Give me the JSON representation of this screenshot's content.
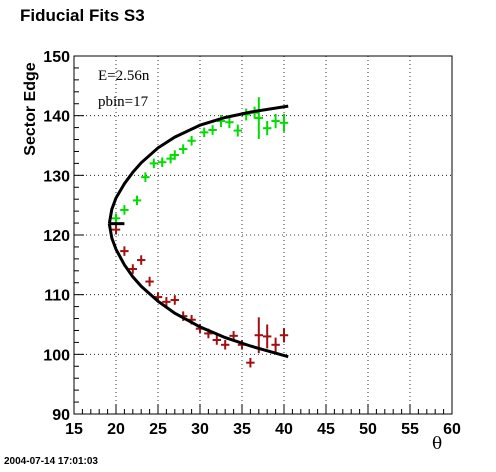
{
  "title": "Fiducial Fits S3",
  "timestamp": "2004-07-14 17:01:03",
  "annotations": [
    "E=2.56n",
    "pbin=17"
  ],
  "colors": {
    "upper": "#00dd00",
    "lower": "#a01010",
    "fit": "#000000",
    "grid": "#000000"
  },
  "chart_data": {
    "type": "scatter",
    "title": "Fiducial Fits S3",
    "xlabel": "θ",
    "ylabel": "Sector Edge",
    "xlim": [
      15,
      60
    ],
    "ylim": [
      90,
      150
    ],
    "xticks": [
      15,
      20,
      25,
      30,
      35,
      40,
      45,
      50,
      55,
      60
    ],
    "yticks": [
      90,
      100,
      110,
      120,
      130,
      140,
      150
    ],
    "grid": true,
    "series": [
      {
        "name": "",
        "kind": "errorbar",
        "color": "#00dd00",
        "points": [
          {
            "x": 20.0,
            "y": 122.8,
            "ey": 0.8
          },
          {
            "x": 21.0,
            "y": 124.2,
            "ey": 0.8
          },
          {
            "x": 22.5,
            "y": 125.8,
            "ey": 0.8
          },
          {
            "x": 23.5,
            "y": 129.7,
            "ey": 0.8
          },
          {
            "x": 24.5,
            "y": 132.0,
            "ey": 0.8
          },
          {
            "x": 25.5,
            "y": 132.2,
            "ey": 0.8
          },
          {
            "x": 26.5,
            "y": 132.8,
            "ey": 0.8
          },
          {
            "x": 27.0,
            "y": 133.4,
            "ey": 0.8
          },
          {
            "x": 28.0,
            "y": 134.4,
            "ey": 0.8
          },
          {
            "x": 29.0,
            "y": 135.8,
            "ey": 0.8
          },
          {
            "x": 30.5,
            "y": 137.2,
            "ey": 0.8
          },
          {
            "x": 31.5,
            "y": 137.6,
            "ey": 0.8
          },
          {
            "x": 32.5,
            "y": 139.1,
            "ey": 1.0
          },
          {
            "x": 33.5,
            "y": 138.9,
            "ey": 1.0
          },
          {
            "x": 34.5,
            "y": 137.5,
            "ey": 1.0
          },
          {
            "x": 35.5,
            "y": 140.2,
            "ey": 1.0
          },
          {
            "x": 36.5,
            "y": 140.5,
            "ey": 1.0
          },
          {
            "x": 37.0,
            "y": 139.6,
            "ey": 3.5
          },
          {
            "x": 38.0,
            "y": 137.9,
            "ey": 1.2
          },
          {
            "x": 39.0,
            "y": 139.1,
            "ey": 1.2
          },
          {
            "x": 40.0,
            "y": 138.8,
            "ey": 1.5
          }
        ]
      },
      {
        "name": "",
        "kind": "errorbar",
        "color": "#a01010",
        "points": [
          {
            "x": 20.0,
            "y": 120.9,
            "ey": 0.8
          },
          {
            "x": 21.0,
            "y": 117.3,
            "ey": 0.8
          },
          {
            "x": 22.0,
            "y": 114.3,
            "ey": 0.8
          },
          {
            "x": 23.0,
            "y": 115.8,
            "ey": 0.8
          },
          {
            "x": 24.0,
            "y": 112.2,
            "ey": 0.8
          },
          {
            "x": 25.0,
            "y": 109.6,
            "ey": 0.8
          },
          {
            "x": 26.0,
            "y": 108.8,
            "ey": 0.8
          },
          {
            "x": 27.0,
            "y": 109.1,
            "ey": 0.8
          },
          {
            "x": 28.0,
            "y": 106.4,
            "ey": 0.8
          },
          {
            "x": 29.0,
            "y": 105.8,
            "ey": 0.8
          },
          {
            "x": 30.0,
            "y": 104.3,
            "ey": 0.8
          },
          {
            "x": 31.0,
            "y": 103.5,
            "ey": 0.8
          },
          {
            "x": 32.0,
            "y": 102.4,
            "ey": 0.8
          },
          {
            "x": 33.0,
            "y": 101.6,
            "ey": 0.8
          },
          {
            "x": 34.0,
            "y": 103.1,
            "ey": 0.8
          },
          {
            "x": 35.0,
            "y": 101.6,
            "ey": 0.8
          },
          {
            "x": 36.0,
            "y": 98.6,
            "ey": 0.8
          },
          {
            "x": 37.0,
            "y": 103.2,
            "ey": 3.0
          },
          {
            "x": 38.0,
            "y": 103.0,
            "ey": 2.0
          },
          {
            "x": 39.0,
            "y": 101.6,
            "ey": 1.2
          },
          {
            "x": 40.0,
            "y": 103.2,
            "ey": 1.2
          }
        ]
      }
    ],
    "fit_curve": {
      "vertex": [
        19.2,
        121.9
      ],
      "points": [
        [
          19.2,
          121.9
        ],
        [
          19.5,
          119.5
        ],
        [
          20.0,
          117.6
        ],
        [
          21.0,
          115.0
        ],
        [
          22.0,
          113.0
        ],
        [
          23.0,
          111.4
        ],
        [
          25.0,
          108.9
        ],
        [
          27.0,
          106.9
        ],
        [
          30.0,
          104.6
        ],
        [
          33.0,
          102.8
        ],
        [
          36.0,
          101.4
        ],
        [
          40.5,
          99.6
        ]
      ],
      "upper_points": [
        [
          19.2,
          121.9
        ],
        [
          19.5,
          124.3
        ],
        [
          20.0,
          126.2
        ],
        [
          21.0,
          128.6
        ],
        [
          22.0,
          130.5
        ],
        [
          23.0,
          132.1
        ],
        [
          25.0,
          134.6
        ],
        [
          27.0,
          136.4
        ],
        [
          30.0,
          138.4
        ],
        [
          33.0,
          139.7
        ],
        [
          36.0,
          140.6
        ],
        [
          40.5,
          141.6
        ]
      ]
    }
  }
}
